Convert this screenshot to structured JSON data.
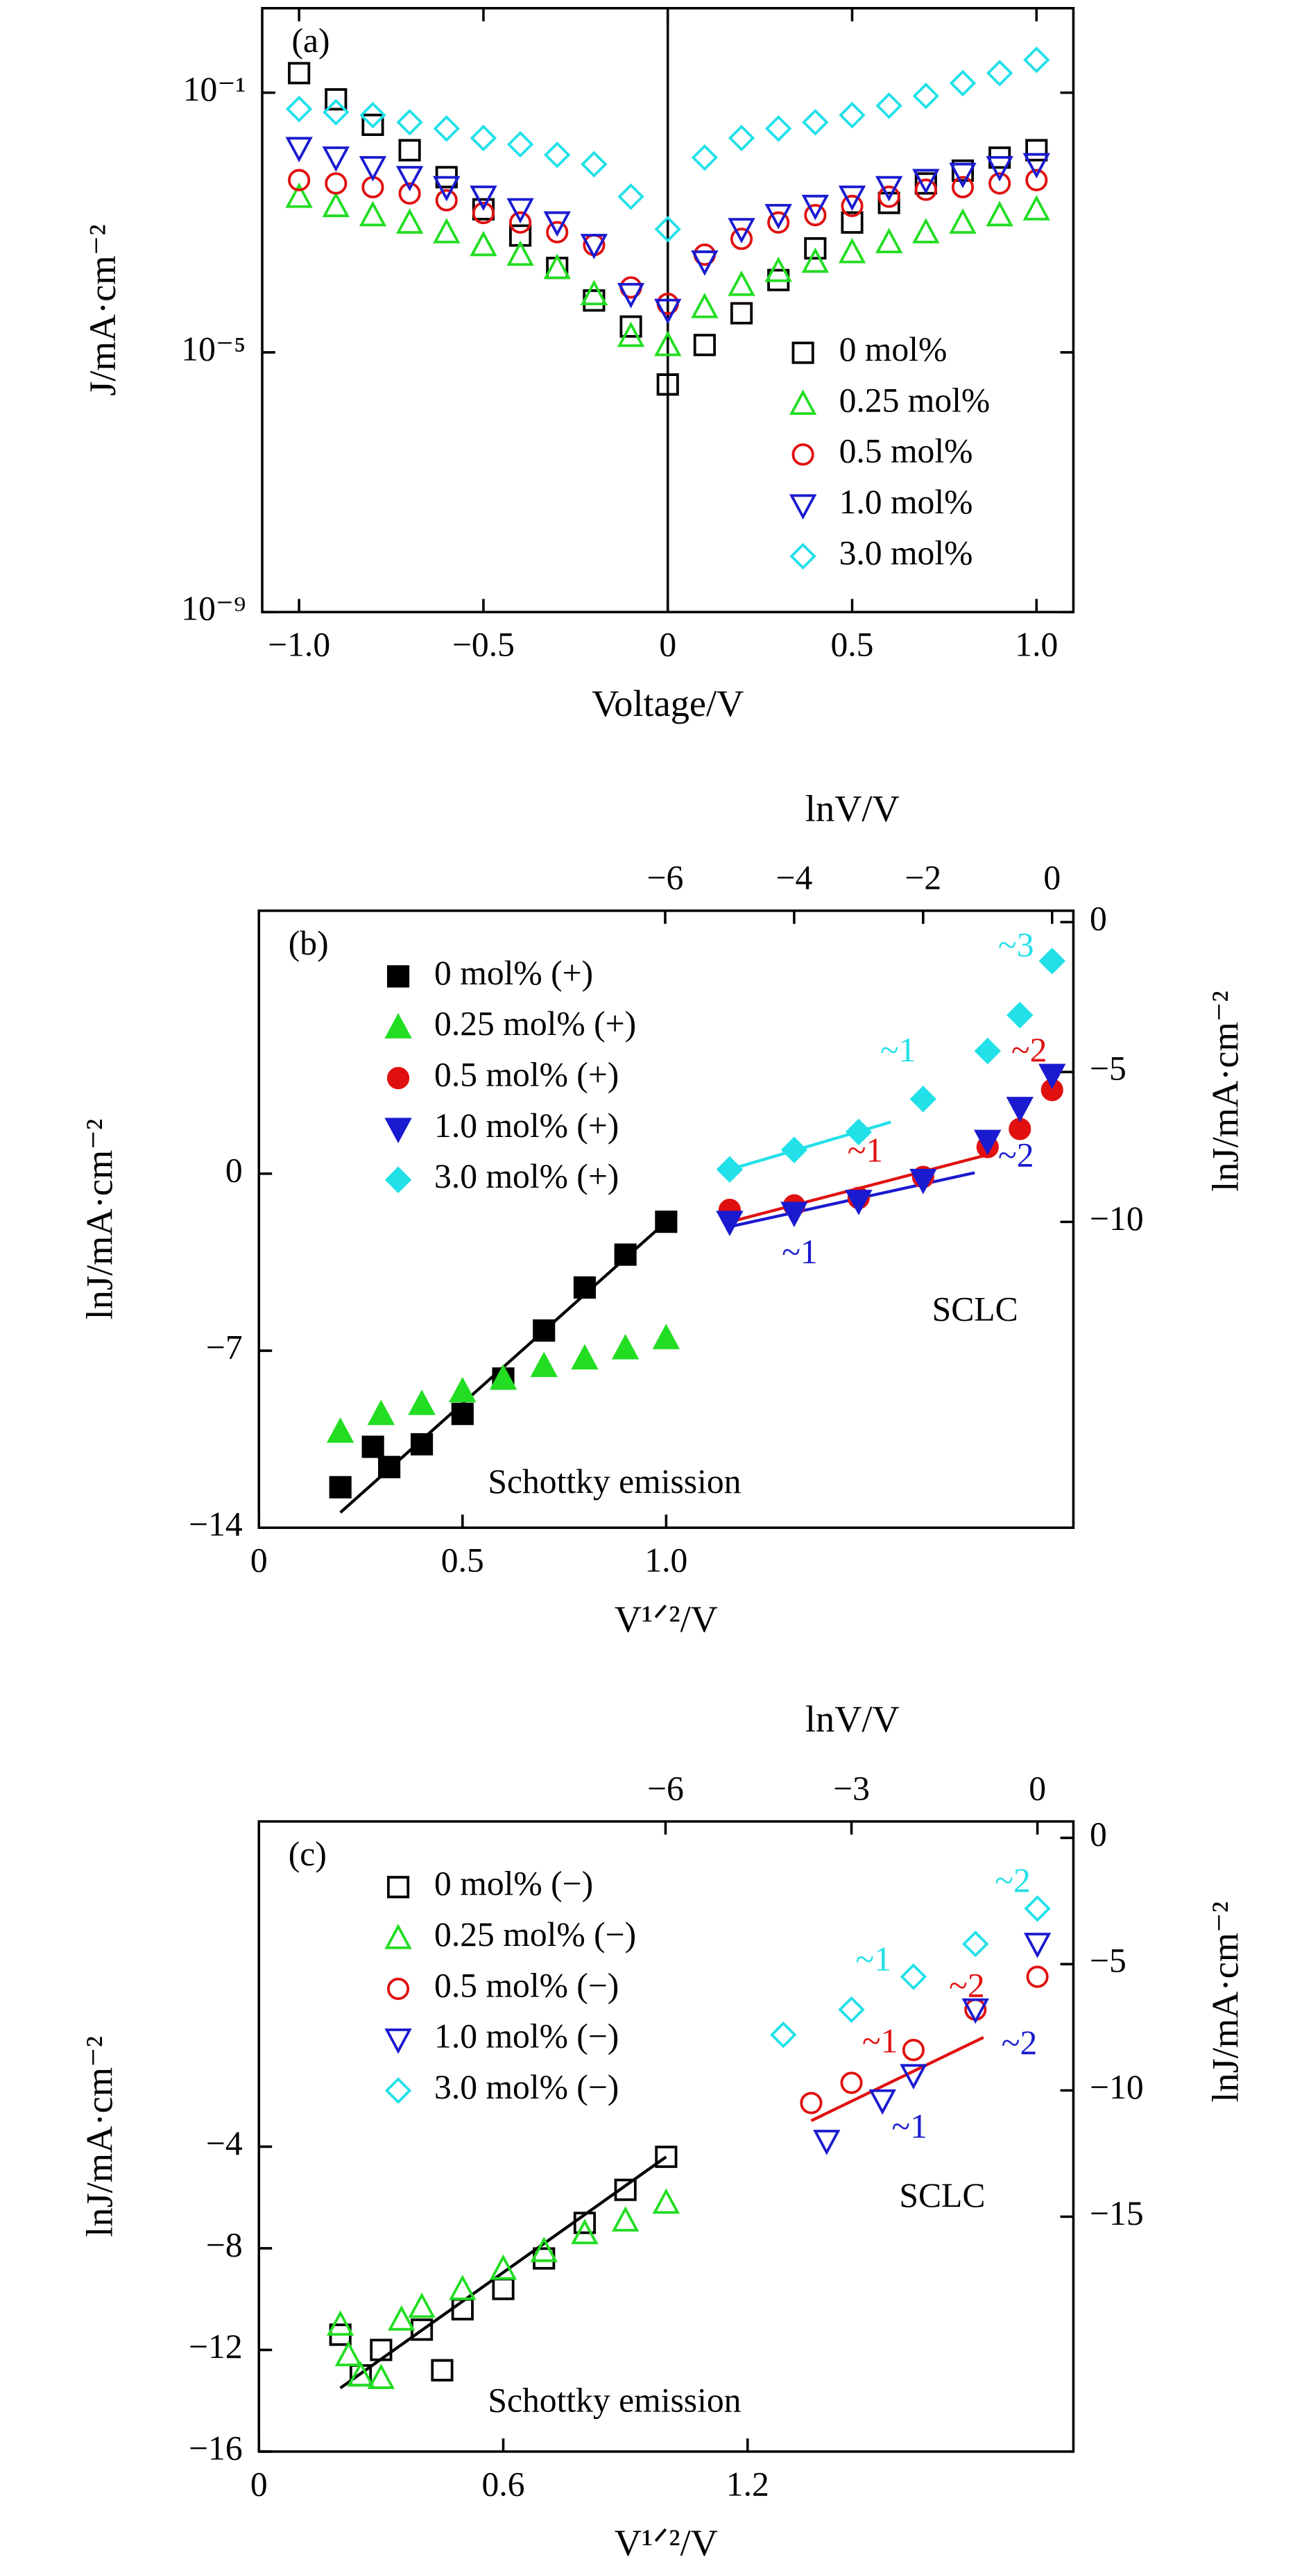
{
  "chart_data": [
    {
      "type": "scatter",
      "label": "(a)",
      "xlabel": "Voltage/V",
      "ylabel": "J/mA·cm⁻²",
      "ylog": true,
      "xlim": [
        -1.1,
        1.1
      ],
      "ylim": [
        1e-09,
        2
      ],
      "xticks": [
        {
          "value": -1,
          "label": "−1.0"
        },
        {
          "value": -0.5,
          "label": "−0.5"
        },
        0,
        0.5,
        {
          "value": 1,
          "label": "1.0"
        }
      ],
      "yticks": [
        {
          "value": 1e-09,
          "label": "10⁻⁹"
        },
        {
          "value": 1e-05,
          "label": "10⁻⁵"
        },
        {
          "value": 0.1,
          "label": "10⁻¹"
        }
      ],
      "vline": 0,
      "legend": "center right",
      "filled": false,
      "x": [
        -1,
        -0.9,
        -0.8,
        -0.7,
        -0.6,
        -0.5,
        -0.4,
        -0.3,
        -0.2,
        -0.1,
        0,
        0.1,
        0.2,
        0.3,
        0.4,
        0.5,
        0.6,
        0.7,
        0.8,
        0.9,
        1
      ],
      "series": [
        {
          "name": "0 mol%",
          "color": "#000000",
          "marker": "square",
          "values": [
            0.2,
            0.079,
            0.032,
            0.013,
            0.005,
            0.0016,
            0.00063,
            0.0002,
            6.3e-05,
            2.5e-05,
            3.2e-06,
            1.3e-05,
            4e-05,
            0.00013,
            0.0004,
            0.001,
            0.002,
            0.004,
            0.0063,
            0.01,
            0.013
          ]
        },
        {
          "name": "0.25 mol%",
          "color": "#22dd22",
          "marker": "triangle-up",
          "values": [
            0.0025,
            0.0018,
            0.0013,
            0.001,
            0.00071,
            0.00045,
            0.00032,
            0.0002,
            7.9e-05,
            1.8e-05,
            1.3e-05,
            5e-05,
            0.00011,
            0.00018,
            0.00025,
            0.00035,
            0.0005,
            0.00071,
            0.001,
            0.0013,
            0.0016
          ]
        },
        {
          "name": "0.5 mol%",
          "color": "#e01010",
          "marker": "circle",
          "values": [
            0.0045,
            0.004,
            0.0035,
            0.0028,
            0.0022,
            0.0014,
            0.001,
            0.00071,
            0.00045,
            0.0001,
            5.6e-05,
            0.00032,
            0.00056,
            0.001,
            0.0013,
            0.0018,
            0.0025,
            0.0032,
            0.0035,
            0.004,
            0.0045
          ]
        },
        {
          "name": "1.0 mol%",
          "color": "#1a1ad0",
          "marker": "triangle-down",
          "values": [
            0.014,
            0.01,
            0.0071,
            0.005,
            0.0035,
            0.0025,
            0.0016,
            0.001,
            0.00045,
            7.9e-05,
            4.5e-05,
            0.00025,
            0.00079,
            0.0013,
            0.0018,
            0.0025,
            0.0035,
            0.0045,
            0.0056,
            0.0071,
            0.0079
          ]
        },
        {
          "name": "3.0 mol%",
          "color": "#22e0e8",
          "marker": "diamond",
          "values": [
            0.056,
            0.05,
            0.045,
            0.035,
            0.028,
            0.02,
            0.016,
            0.011,
            0.0079,
            0.0025,
            0.00079,
            0.01,
            0.02,
            0.028,
            0.035,
            0.045,
            0.063,
            0.089,
            0.14,
            0.2,
            0.32
          ]
        }
      ]
    },
    {
      "type": "scatter",
      "label": "(b)",
      "xlabel": "V¹ᐟ²/V",
      "ylabel": "lnJ/mA·cm⁻²",
      "x2label": "lnV/V",
      "y2label": "lnJ/mA·cm⁻²",
      "xlim": [
        0,
        2
      ],
      "ylim": [
        -14,
        10.4
      ],
      "x2lim": [
        -12.3,
        0.33
      ],
      "y2lim": [
        -20.2,
        0.38
      ],
      "xticks": [
        0,
        0.5,
        {
          "value": 1,
          "label": "1.0"
        }
      ],
      "yticks": [
        {
          "value": -14,
          "label": "−14"
        },
        {
          "value": -7,
          "label": "−7"
        },
        0
      ],
      "x2ticks": [
        {
          "value": -6,
          "label": "−6"
        },
        {
          "value": -4,
          "label": "−4"
        },
        {
          "value": -2,
          "label": "−2"
        },
        0
      ],
      "y2ticks": [
        {
          "value": -10,
          "label": "−10"
        },
        {
          "value": -5,
          "label": "−5"
        },
        0
      ],
      "legend": "upper left",
      "filled": true,
      "series": [
        {
          "name": "0 mol% (+)",
          "color": "#000000",
          "marker": "square",
          "x": [
            0.2,
            0.28,
            0.32,
            0.4,
            0.5,
            0.6,
            0.7,
            0.8,
            0.9,
            1.0
          ],
          "values": [
            -12.4,
            -10.8,
            -11.6,
            -10.7,
            -9.5,
            -8.1,
            -6.2,
            -4.5,
            -3.2,
            -1.9
          ]
        },
        {
          "name": "0.25 mol% (+)",
          "color": "#22dd22",
          "marker": "triangle-up",
          "x": [
            0.2,
            0.3,
            0.4,
            0.5,
            0.6,
            0.7,
            0.8,
            0.9,
            1.0
          ],
          "values": [
            -10.2,
            -9.5,
            -9.1,
            -8.6,
            -8.1,
            -7.6,
            -7.3,
            -6.9,
            -6.5
          ]
        },
        {
          "name": "0.5 mol% (+)",
          "color": "#e01010",
          "marker": "circle",
          "axis": "y2",
          "x": [
            -5,
            -4,
            -3,
            -2,
            -1,
            -0.5,
            0
          ],
          "values": [
            -9.6,
            -9.45,
            -9.2,
            -8.5,
            -7.5,
            -6.9,
            -5.6
          ]
        },
        {
          "name": "1.0 mol% (+)",
          "color": "#1a1ad0",
          "marker": "triangle-down",
          "axis": "y2",
          "x": [
            -5,
            -4,
            -3,
            -2,
            -1,
            -0.5,
            0
          ],
          "values": [
            -10.0,
            -9.7,
            -9.3,
            -8.6,
            -7.3,
            -6.2,
            -5.1
          ]
        },
        {
          "name": "3.0 mol% (+)",
          "color": "#22e0e8",
          "marker": "diamond",
          "axis": "y2",
          "x": [
            -5,
            -4,
            -3,
            -2,
            -1,
            -0.5,
            0
          ],
          "values": [
            -8.25,
            -7.6,
            -7.0,
            -5.9,
            -4.3,
            -3.1,
            -1.3
          ]
        }
      ],
      "fits": [
        {
          "color": "#000000",
          "x": [
            0.2,
            1.0
          ],
          "values": [
            -13.4,
            -1.9
          ]
        },
        {
          "color": "#22e0e8",
          "axis": "y2",
          "x": [
            -5,
            -2.5
          ],
          "values": [
            -8.25,
            -6.67
          ]
        },
        {
          "color": "#e01010",
          "axis": "y2",
          "x": [
            -5,
            -1.07
          ],
          "values": [
            -10.0,
            -7.8
          ]
        },
        {
          "color": "#1a1ad0",
          "axis": "y2",
          "x": [
            -5,
            -1.2
          ],
          "values": [
            -10.16,
            -8.36
          ]
        }
      ],
      "annotations": [
        {
          "text": "SCLC",
          "color": "#000000"
        },
        {
          "text": "Schottky emission",
          "color": "#000000"
        },
        {
          "text": "~3",
          "color": "#22e0e8"
        },
        {
          "text": "~1",
          "color": "#22e0e8"
        },
        {
          "text": "~2",
          "color": "#e01010"
        },
        {
          "text": "~1",
          "color": "#e01010"
        },
        {
          "text": "~2",
          "color": "#1a1ad0"
        },
        {
          "text": "~1",
          "color": "#1a1ad0"
        }
      ]
    },
    {
      "type": "scatter",
      "label": "(c)",
      "xlabel": "V¹ᐟ²/V",
      "ylabel": "lnJ/mA·cm⁻²",
      "x2label": "lnV/V",
      "y2label": "lnJ/mA·cm⁻²",
      "xlim": [
        0,
        2
      ],
      "ylim": [
        -16,
        8.8
      ],
      "x2lim": [
        -12.56,
        0.58
      ],
      "y2lim": [
        -24.3,
        0.65
      ],
      "xticks": [
        0,
        0.6,
        1.2
      ],
      "yticks": [
        {
          "value": -16,
          "label": "−16"
        },
        {
          "value": -12,
          "label": "−12"
        },
        {
          "value": -8,
          "label": "−8"
        },
        {
          "value": -4,
          "label": "−4"
        }
      ],
      "x2ticks": [
        {
          "value": -6,
          "label": "−6"
        },
        {
          "value": -3,
          "label": "−3"
        },
        0
      ],
      "y2ticks": [
        {
          "value": -15,
          "label": "−15"
        },
        {
          "value": -10,
          "label": "−10"
        },
        {
          "value": -5,
          "label": "−5"
        },
        0
      ],
      "legend": "upper left",
      "filled": false,
      "series": [
        {
          "name": "0 mol% (−)",
          "color": "#000000",
          "marker": "square",
          "x": [
            0.2,
            0.25,
            0.3,
            0.4,
            0.45,
            0.5,
            0.6,
            0.7,
            0.8,
            0.9,
            1.0
          ],
          "values": [
            -11.4,
            -13.0,
            -12.0,
            -11.2,
            -12.8,
            -10.4,
            -9.6,
            -8.4,
            -7.0,
            -5.7,
            -4.4
          ]
        },
        {
          "name": "0.25 mol% (−)",
          "color": "#22dd22",
          "marker": "triangle-up",
          "x": [
            0.2,
            0.22,
            0.25,
            0.3,
            0.35,
            0.4,
            0.5,
            0.6,
            0.7,
            0.8,
            0.9,
            1.0
          ],
          "values": [
            -11.0,
            -12.2,
            -13.0,
            -13.1,
            -10.8,
            -10.3,
            -9.6,
            -8.8,
            -8.1,
            -7.4,
            -6.9,
            -6.2
          ]
        },
        {
          "name": "0.5 mol% (−)",
          "color": "#e01010",
          "marker": "circle",
          "axis": "y2",
          "x": [
            -3.65,
            -3,
            -2,
            -1,
            0
          ],
          "values": [
            -10.5,
            -9.7,
            -8.4,
            -6.8,
            -5.5
          ]
        },
        {
          "name": "1.0 mol% (−)",
          "color": "#1a1ad0",
          "marker": "triangle-down",
          "axis": "y2",
          "x": [
            -3.4,
            -2.5,
            -2,
            -1,
            0
          ],
          "values": [
            -12.0,
            -10.4,
            -9.4,
            -6.8,
            -4.2
          ]
        },
        {
          "name": "3.0 mol% (−)",
          "color": "#22e0e8",
          "marker": "diamond",
          "axis": "y2",
          "x": [
            -4.1,
            -3,
            -2,
            -1,
            0
          ],
          "values": [
            -7.8,
            -6.8,
            -5.5,
            -4.2,
            -2.8
          ]
        }
      ],
      "fits": [
        {
          "color": "#000000",
          "x": [
            0.2,
            1.0
          ],
          "values": [
            -13.5,
            -4.4
          ]
        },
        {
          "color": "#e01010",
          "axis": "y2",
          "x": [
            -3.65,
            -0.87
          ],
          "values": [
            -11.2,
            -7.9
          ]
        }
      ],
      "annotations": [
        {
          "text": "SCLC",
          "color": "#000000"
        },
        {
          "text": "Schottky emission",
          "color": "#000000"
        },
        {
          "text": "~2",
          "color": "#22e0e8"
        },
        {
          "text": "~1",
          "color": "#22e0e8"
        },
        {
          "text": "~2",
          "color": "#e01010"
        },
        {
          "text": "~1",
          "color": "#e01010"
        },
        {
          "text": "~2",
          "color": "#1a1ad0"
        },
        {
          "text": "~1",
          "color": "#1a1ad0"
        }
      ]
    }
  ]
}
